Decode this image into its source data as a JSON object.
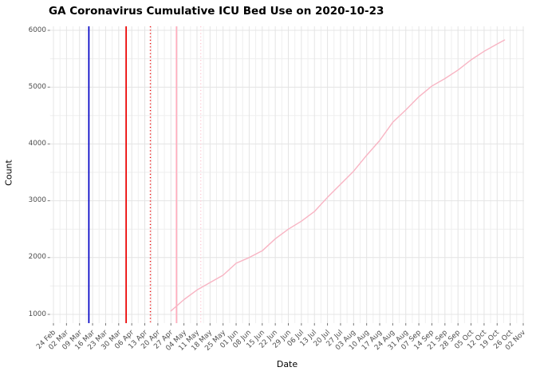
{
  "title": "GA Coronavirus Cumulative ICU Bed Use on 2020-10-23",
  "axes": {
    "x_label": "Date",
    "y_label": "Count",
    "y_tick_labels": [
      "1000",
      "2000",
      "3000",
      "4000",
      "5000",
      "6000"
    ],
    "x_tick_labels": [
      "24 Feb",
      "02 Mar",
      "09 Mar",
      "16 Mar",
      "23 Mar",
      "30 Mar",
      "06 Apr",
      "13 Apr",
      "20 Apr",
      "27 Apr",
      "04 May",
      "11 May",
      "18 May",
      "25 May",
      "01 Jun",
      "08 Jun",
      "15 Jun",
      "22 Jun",
      "29 Jun",
      "06 Jul",
      "13 Jul",
      "20 Jul",
      "27 Jul",
      "03 Aug",
      "10 Aug",
      "17 Aug",
      "24 Aug",
      "31 Aug",
      "07 Sep",
      "14 Sep",
      "21 Sep",
      "28 Sep",
      "05 Oct",
      "12 Oct",
      "19 Oct",
      "26 Oct",
      "02 Nov"
    ]
  },
  "colors": {
    "background": "#ffffff",
    "grid_major": "#e4e4e4",
    "grid_minor": "#efefef",
    "axis_text": "#4d4d4d",
    "tick_mark": "#777777",
    "series_line": "#f8b4c3",
    "vline_blue": "#0000c4",
    "vline_red": "#ee0000",
    "vline_pink": "#ffaebe",
    "vline_pink_light": "#ffc9d4"
  },
  "chart_data": {
    "type": "line",
    "title": "GA Coronavirus Cumulative ICU Bed Use on 2020-10-23",
    "xlabel": "Date",
    "ylabel": "Count",
    "ylim": [
      1000,
      6000
    ],
    "x_axis_start": "2020-02-24",
    "x_axis_tick_interval_days": 7,
    "grid": true,
    "legend": false,
    "series": [
      {
        "name": "cumulative-icu-bed-use",
        "color": "#f8b4c3",
        "points": [
          {
            "date": "2020-04-27",
            "count": 1060
          },
          {
            "date": "2020-05-04",
            "count": 1260
          },
          {
            "date": "2020-05-11",
            "count": 1430
          },
          {
            "date": "2020-05-18",
            "count": 1560
          },
          {
            "date": "2020-05-25",
            "count": 1690
          },
          {
            "date": "2020-06-01",
            "count": 1900
          },
          {
            "date": "2020-06-08",
            "count": 2000
          },
          {
            "date": "2020-06-15",
            "count": 2120
          },
          {
            "date": "2020-06-22",
            "count": 2330
          },
          {
            "date": "2020-06-29",
            "count": 2500
          },
          {
            "date": "2020-07-06",
            "count": 2640
          },
          {
            "date": "2020-07-13",
            "count": 2810
          },
          {
            "date": "2020-07-20",
            "count": 3060
          },
          {
            "date": "2020-07-27",
            "count": 3290
          },
          {
            "date": "2020-08-03",
            "count": 3520
          },
          {
            "date": "2020-08-10",
            "count": 3800
          },
          {
            "date": "2020-08-17",
            "count": 4060
          },
          {
            "date": "2020-08-24",
            "count": 4380
          },
          {
            "date": "2020-08-31",
            "count": 4600
          },
          {
            "date": "2020-09-07",
            "count": 4830
          },
          {
            "date": "2020-09-14",
            "count": 5020
          },
          {
            "date": "2020-09-21",
            "count": 5150
          },
          {
            "date": "2020-09-28",
            "count": 5300
          },
          {
            "date": "2020-10-05",
            "count": 5480
          },
          {
            "date": "2020-10-12",
            "count": 5630
          },
          {
            "date": "2020-10-19",
            "count": 5760
          },
          {
            "date": "2020-10-23",
            "count": 5830
          }
        ]
      }
    ],
    "vertical_lines": [
      {
        "date": "2020-03-14",
        "color": "#0000c4",
        "style": "solid"
      },
      {
        "date": "2020-04-03",
        "color": "#ee0000",
        "style": "solid"
      },
      {
        "date": "2020-04-16",
        "color": "#ee0000",
        "style": "dotted"
      },
      {
        "date": "2020-04-30",
        "color": "#ffaebe",
        "style": "solid"
      },
      {
        "date": "2020-05-13",
        "color": "#ffc9d4",
        "style": "dotted"
      }
    ]
  }
}
